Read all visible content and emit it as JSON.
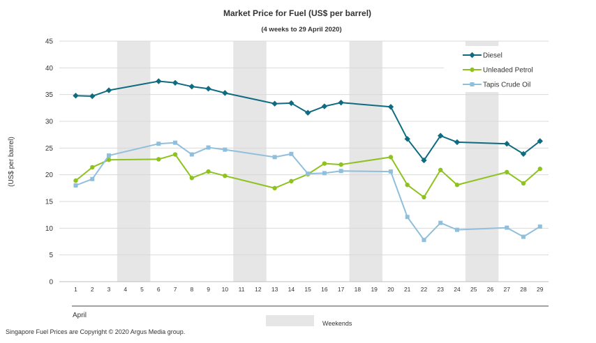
{
  "chart_data": {
    "type": "line",
    "title": "Market Price for Fuel (US$ per barrel)",
    "subtitle": "(4 weeks to 29 April 2020)",
    "xlabel": "April",
    "ylabel": "(US$ per barrel)",
    "ylim": [
      0,
      45
    ],
    "yticks": [
      0,
      5,
      10,
      15,
      20,
      25,
      30,
      35,
      40,
      45
    ],
    "grid": true,
    "legend_position": "top-right",
    "x": [
      1,
      2,
      3,
      4,
      5,
      6,
      7,
      8,
      9,
      10,
      11,
      12,
      13,
      14,
      15,
      16,
      17,
      18,
      19,
      20,
      21,
      22,
      23,
      24,
      25,
      26,
      27,
      28,
      29
    ],
    "weekend_days": [
      [
        4,
        5
      ],
      [
        11,
        12
      ],
      [
        18,
        19
      ],
      [
        25,
        26
      ]
    ],
    "weekend_label": "Weekends",
    "series": [
      {
        "name": "Diesel",
        "color": "#0e6b80",
        "marker": "diamond",
        "x": [
          1,
          2,
          3,
          6,
          7,
          8,
          9,
          10,
          13,
          14,
          15,
          16,
          17,
          20,
          21,
          22,
          23,
          24,
          27,
          28,
          29
        ],
        "values": [
          34.8,
          34.7,
          35.8,
          37.5,
          37.2,
          36.5,
          36.1,
          35.3,
          33.3,
          33.4,
          31.6,
          32.8,
          33.5,
          32.7,
          26.7,
          22.7,
          27.3,
          26.1,
          25.8,
          23.9,
          26.3
        ]
      },
      {
        "name": "Unleaded Petrol",
        "color": "#8dc21f",
        "marker": "circle",
        "x": [
          1,
          2,
          3,
          6,
          7,
          8,
          9,
          10,
          13,
          14,
          15,
          16,
          17,
          20,
          21,
          22,
          23,
          24,
          27,
          28,
          29
        ],
        "values": [
          18.9,
          21.4,
          22.8,
          22.9,
          23.8,
          19.4,
          20.6,
          19.8,
          17.5,
          18.8,
          20.1,
          22.1,
          21.9,
          23.3,
          18.1,
          15.8,
          20.9,
          18.1,
          20.5,
          18.4,
          21.1
        ]
      },
      {
        "name": "Tapis Crude Oil",
        "color": "#8fbfdc",
        "marker": "square",
        "x": [
          1,
          2,
          3,
          6,
          7,
          8,
          9,
          10,
          13,
          14,
          15,
          16,
          17,
          20,
          21,
          22,
          23,
          24,
          27,
          28,
          29
        ],
        "values": [
          18.0,
          19.2,
          23.6,
          25.8,
          26.0,
          23.8,
          25.1,
          24.7,
          23.3,
          23.9,
          20.2,
          20.3,
          20.7,
          20.6,
          12.1,
          7.8,
          11.0,
          9.7,
          10.1,
          8.4,
          10.3
        ]
      }
    ]
  },
  "footer": {
    "copyright": "Singapore Fuel Prices are Copyright © 2020 Argus Media group."
  }
}
